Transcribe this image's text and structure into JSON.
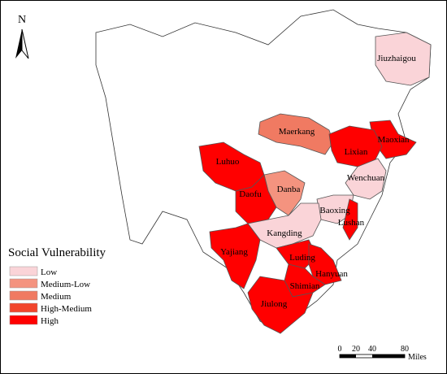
{
  "north": "N",
  "legend": {
    "title": "Social Vulnerability",
    "items": [
      {
        "label": "Low",
        "color": "#fad4d8"
      },
      {
        "label": "Medium-Low",
        "color": "#f4937f"
      },
      {
        "label": "Medium",
        "color": "#f07a62"
      },
      {
        "label": "High-Medium",
        "color": "#f2452c"
      },
      {
        "label": "High",
        "color": "#ff0000"
      }
    ]
  },
  "regions": [
    {
      "name": "Jiuzhaigou",
      "level": "Low"
    },
    {
      "name": "Maerkang",
      "level": "Medium"
    },
    {
      "name": "Maoxian",
      "level": "High"
    },
    {
      "name": "Lixian",
      "level": "High"
    },
    {
      "name": "Wenchuan",
      "level": "Low"
    },
    {
      "name": "Luhuo",
      "level": "High"
    },
    {
      "name": "Danba",
      "level": "Medium-Low"
    },
    {
      "name": "Daofu",
      "level": "High"
    },
    {
      "name": "Baoxing",
      "level": "Low"
    },
    {
      "name": "Lushan",
      "level": "High"
    },
    {
      "name": "Kangding",
      "level": "Low"
    },
    {
      "name": "Yajiang",
      "level": "High"
    },
    {
      "name": "Luding",
      "level": "High"
    },
    {
      "name": "Hanyuan",
      "level": "High"
    },
    {
      "name": "Shimian",
      "level": "High"
    },
    {
      "name": "Jiulong",
      "level": "High"
    }
  ],
  "scale_bar": {
    "ticks": [
      "0",
      "20",
      "40",
      "80"
    ],
    "unit": "Miles"
  }
}
